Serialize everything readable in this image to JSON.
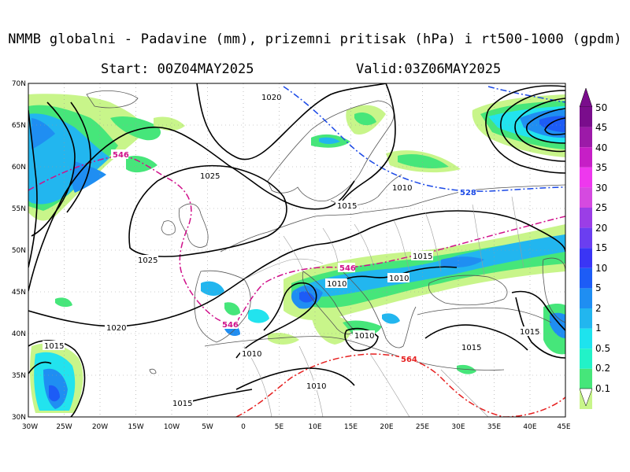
{
  "header": {
    "title": "NMMB globalni - Padavine (mm), prizemni pritisak (hPa) i rt500-1000 (gpdm)",
    "start": "Start: 00Z04MAY2025",
    "valid": "Valid:03Z06MAY2025"
  },
  "map": {
    "lat_labels": [
      "70N",
      "65N",
      "60N",
      "55N",
      "50N",
      "45N",
      "40N",
      "35N",
      "30N"
    ],
    "lon_labels": [
      "30W",
      "25W",
      "20W",
      "15W",
      "10W",
      "5W",
      "0",
      "5E",
      "10E",
      "15E",
      "20E",
      "25E",
      "30E",
      "35E",
      "40E",
      "45E"
    ],
    "isobar_labels": [
      "1020",
      "1025",
      "1025",
      "1020",
      "1015",
      "1015",
      "1010",
      "1010",
      "1010",
      "1010",
      "1015",
      "1015",
      "1015",
      "1010",
      "1015",
      "1010"
    ],
    "thickness_labels": [
      "546",
      "528",
      "546",
      "546",
      "564"
    ],
    "colors": {
      "isobar": "#000000",
      "thickness_546": "#d0108a",
      "thickness_528": "#1b49e6",
      "thickness_564": "#e62020",
      "coast": "#555555",
      "border": "#9a9a9a",
      "grid": "#9a9a9a"
    }
  },
  "colorbar": {
    "labels": [
      "50",
      "45",
      "40",
      "35",
      "30",
      "25",
      "20",
      "15",
      "10",
      "5",
      "2",
      "1",
      "0.5",
      "0.2",
      "0.1"
    ],
    "colors": [
      "#7a0d8c",
      "#9c1aa8",
      "#c61fc6",
      "#ee38ee",
      "#d54ae0",
      "#9b3ee6",
      "#6b3ef0",
      "#3a35f5",
      "#1d5cf6",
      "#1f8ef2",
      "#22b6ef",
      "#1ee3ee",
      "#22f2c8",
      "#46e67a",
      "#c8f58a"
    ]
  }
}
